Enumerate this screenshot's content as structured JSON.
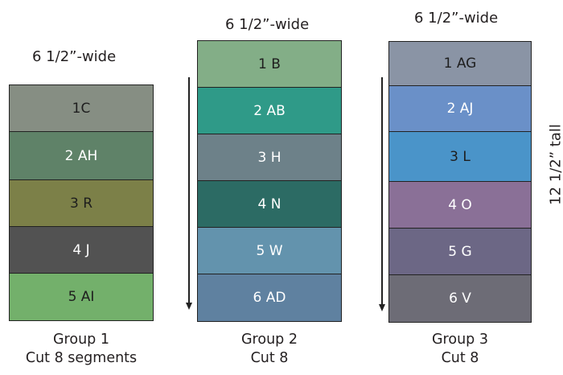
{
  "groups": [
    {
      "width_label": "6 1/2”-wide",
      "title": "Group 1",
      "cut": "Cut 8 segments",
      "segments": [
        {
          "label": "1C",
          "color": "#868e83",
          "text_color": "#1e1e1e"
        },
        {
          "label": "2 AH",
          "color": "#5f8268",
          "text_color": "#ffffff"
        },
        {
          "label": "3 R",
          "color": "#7c8048",
          "text_color": "#1e1e1e"
        },
        {
          "label": "4 J",
          "color": "#525252",
          "text_color": "#ffffff"
        },
        {
          "label": "5 AI",
          "color": "#73b06b",
          "text_color": "#1e1e1e"
        }
      ]
    },
    {
      "width_label": "6 1/2”-wide",
      "title": "Group 2",
      "cut": "Cut 8",
      "segments": [
        {
          "label": "1 B",
          "color": "#83ae87",
          "text_color": "#1e1e1e"
        },
        {
          "label": "2 AB",
          "color": "#2f9a88",
          "text_color": "#ffffff"
        },
        {
          "label": "3 H",
          "color": "#6d8189",
          "text_color": "#ffffff"
        },
        {
          "label": "4 N",
          "color": "#2c6b64",
          "text_color": "#ffffff"
        },
        {
          "label": "5 W",
          "color": "#6393ad",
          "text_color": "#ffffff"
        },
        {
          "label": "6 AD",
          "color": "#5f81a0",
          "text_color": "#ffffff"
        }
      ]
    },
    {
      "width_label": "6 1/2”-wide",
      "title": "Group 3",
      "cut": "Cut 8",
      "segments": [
        {
          "label": "1 AG",
          "color": "#8a94a5",
          "text_color": "#1e1e1e"
        },
        {
          "label": "2 AJ",
          "color": "#6a90c8",
          "text_color": "#ffffff"
        },
        {
          "label": "3 L",
          "color": "#4a94c9",
          "text_color": "#1e1e1e"
        },
        {
          "label": "4 O",
          "color": "#8a7097",
          "text_color": "#ffffff"
        },
        {
          "label": "5 G",
          "color": "#6c6785",
          "text_color": "#ffffff"
        },
        {
          "label": "6 V",
          "color": "#6d6c76",
          "text_color": "#ffffff"
        }
      ]
    }
  ],
  "tall_label": "12 1/2” tall"
}
